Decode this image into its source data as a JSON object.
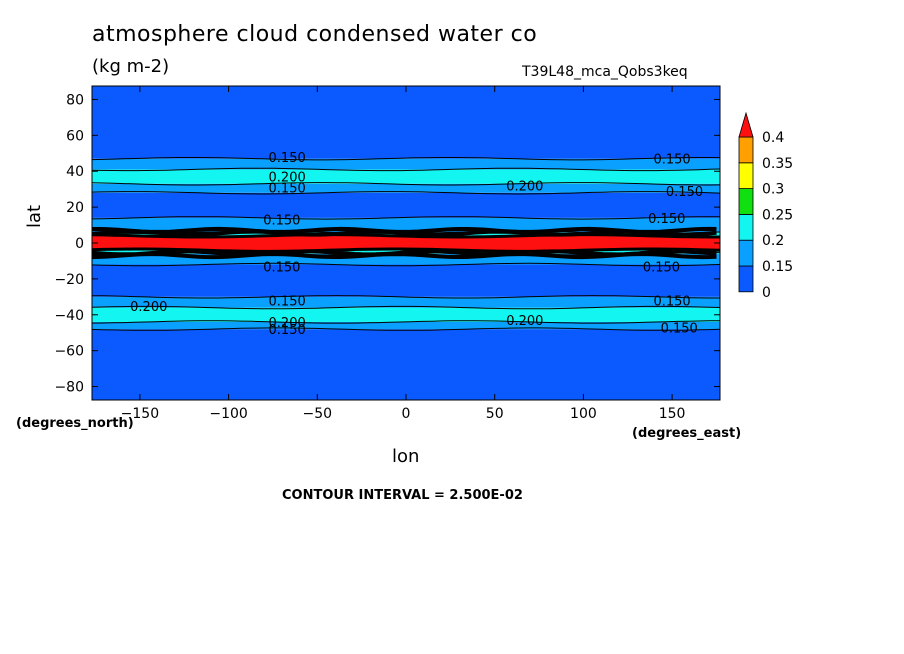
{
  "title": "atmosphere cloud condensed water co",
  "units": "(kg m-2)",
  "run_id": "T39L48_mca_Qobs3keq",
  "xlabel": "lon",
  "xlabel_units": "(degrees_east)",
  "ylabel": "lat",
  "ylabel_units": "(degrees_north)",
  "contour_interval": "CONTOUR INTERVAL = 2.500E-02",
  "chart_data": {
    "type": "heatmap",
    "x": {
      "label": "lon",
      "range": [
        -177,
        177
      ],
      "ticks": [
        -150,
        -100,
        -50,
        0,
        50,
        100,
        150
      ]
    },
    "y": {
      "label": "lat",
      "range": [
        -87.5,
        87.5
      ],
      "ticks": [
        80,
        60,
        40,
        20,
        0,
        -20,
        -40,
        -60,
        -80
      ]
    },
    "colorbar": {
      "levels": [
        "0",
        "0.15",
        "0.2",
        "0.25",
        "0.3",
        "0.35",
        "0.4"
      ],
      "colors": [
        "#0a5aff",
        "#0aa0ff",
        "#12f5f0",
        "#10e010",
        "#ffff00",
        "#ffa000",
        "#ff1010"
      ]
    },
    "bands": [
      {
        "lat": [
          -87.5,
          -48
        ],
        "value_class": 0
      },
      {
        "lat": [
          -48,
          -44
        ],
        "value_class": 1
      },
      {
        "lat": [
          -44,
          -36
        ],
        "value_class": 2
      },
      {
        "lat": [
          -36,
          -30
        ],
        "value_class": 1
      },
      {
        "lat": [
          -30,
          -12
        ],
        "value_class": 0
      },
      {
        "lat": [
          -12,
          -6
        ],
        "value_class": 1
      },
      {
        "lat": [
          -6,
          -4
        ],
        "value_class": 2
      },
      {
        "lat": [
          -4,
          4
        ],
        "value_class": 6
      },
      {
        "lat": [
          4,
          6
        ],
        "value_class": 2
      },
      {
        "lat": [
          6,
          14
        ],
        "value_class": 1
      },
      {
        "lat": [
          14,
          28
        ],
        "value_class": 0
      },
      {
        "lat": [
          28,
          33
        ],
        "value_class": 1
      },
      {
        "lat": [
          33,
          41
        ],
        "value_class": 2
      },
      {
        "lat": [
          41,
          47
        ],
        "value_class": 1
      },
      {
        "lat": [
          47,
          87.5
        ],
        "value_class": 0
      }
    ],
    "contour_labels": [
      {
        "text": "0.150",
        "lon": -67,
        "lat": 48
      },
      {
        "text": "0.200",
        "lon": -67,
        "lat": 37
      },
      {
        "text": "0.150",
        "lon": -67,
        "lat": 31
      },
      {
        "text": "0.150",
        "lon": 150,
        "lat": 47
      },
      {
        "text": "0.200",
        "lon": 67,
        "lat": 32
      },
      {
        "text": "0.150",
        "lon": 157,
        "lat": 29
      },
      {
        "text": "0.150",
        "lon": -70,
        "lat": 13
      },
      {
        "text": "0.150",
        "lon": 147,
        "lat": 14
      },
      {
        "text": "0.150",
        "lon": -70,
        "lat": -13
      },
      {
        "text": "0.150",
        "lon": 144,
        "lat": -13
      },
      {
        "text": "0.150",
        "lon": -67,
        "lat": -32
      },
      {
        "text": "0.200",
        "lon": -145,
        "lat": -35
      },
      {
        "text": "0.150",
        "lon": 150,
        "lat": -32
      },
      {
        "text": "0.200",
        "lon": -67,
        "lat": -44
      },
      {
        "text": "0.150",
        "lon": -67,
        "lat": -48
      },
      {
        "text": "0.200",
        "lon": 67,
        "lat": -43
      },
      {
        "text": "0.150",
        "lon": 154,
        "lat": -47
      }
    ]
  }
}
